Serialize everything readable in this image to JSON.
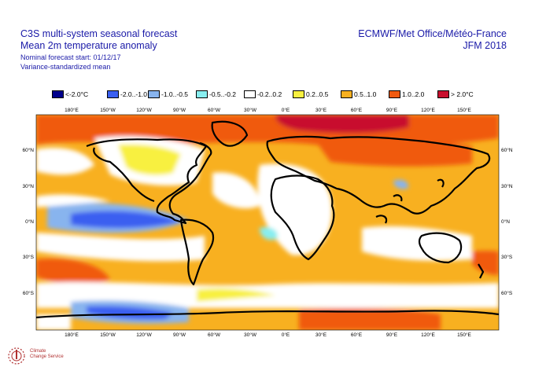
{
  "header": {
    "title": "C3S multi-system seasonal forecast",
    "subtitle": "Mean 2m temperature anomaly",
    "forecast_start": "Nominal forecast start: 01/12/17",
    "variance": "Variance-standardized mean",
    "centres": "ECMWF/Met Office/Météo-France",
    "period": "JFM 2018"
  },
  "legend": [
    {
      "label": "<-2.0°C",
      "color": "#00008c"
    },
    {
      "label": "-2.0..-1.0",
      "color": "#3a5ff0"
    },
    {
      "label": "-1.0..-0.5",
      "color": "#88b4ee"
    },
    {
      "label": "-0.5..-0.2",
      "color": "#88eef0"
    },
    {
      "label": "-0.2..0.2",
      "color": "#ffffff"
    },
    {
      "label": "0.2..0.5",
      "color": "#f8f040"
    },
    {
      "label": "0.5..1.0",
      "color": "#f8b020"
    },
    {
      "label": "1.0..2.0",
      "color": "#f05a10"
    },
    {
      "label": "> 2.0°C",
      "color": "#c8102e"
    }
  ],
  "axes": {
    "lon_labels": [
      "180°E",
      "150°W",
      "120°W",
      "90°W",
      "60°W",
      "30°W",
      "0°E",
      "30°E",
      "60°E",
      "90°E",
      "120°E",
      "150°E"
    ],
    "lat_labels": [
      "60°N",
      "30°N",
      "0°N",
      "30°S",
      "60°S"
    ]
  },
  "logo": {
    "name": "climate-change-service-logo",
    "text_line1": "Climate",
    "text_line2": "Change Service"
  },
  "colors": {
    "text": "#1a1aa8"
  }
}
